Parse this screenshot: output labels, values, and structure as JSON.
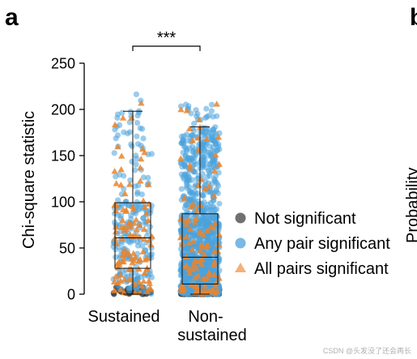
{
  "panel": {
    "label": "a",
    "next_panel_label": "b",
    "next_panel_clipped_text": "Probability"
  },
  "chart_data": {
    "type": "scatter",
    "subtype": "jittered strip plot with box plots",
    "categories": [
      "Sustained",
      "Non-sustained"
    ],
    "xlabel": "",
    "ylabel": "Chi-square statistic",
    "ylim": [
      0,
      250
    ],
    "yticks": [
      0,
      50,
      100,
      150,
      200,
      250
    ],
    "grid": false,
    "legend_placement": "right",
    "legend": [
      {
        "name": "Not significant",
        "marker": "circle",
        "color": "#707070"
      },
      {
        "name": "Any pair significant",
        "marker": "circle",
        "color": "#79b9e4"
      },
      {
        "name": "All pairs significant",
        "marker": "triangle",
        "color": "#f4b07a"
      }
    ],
    "boxes": [
      {
        "category": "Sustained",
        "whisker_low": 0,
        "q1": 28,
        "median": 61,
        "q3": 99,
        "whisker_high": 198
      },
      {
        "category": "Non-sustained",
        "whisker_low": 0,
        "q1": 11,
        "median": 40,
        "q3": 87,
        "whisker_high": 181
      }
    ],
    "significance": {
      "between": [
        "Sustained",
        "Non-sustained"
      ],
      "label": "***"
    },
    "point_counts_estimate": {
      "Sustained": {
        "Not significant": 40,
        "Any pair significant": 230,
        "All pairs significant": 110
      },
      "Non-sustained": {
        "Not significant": 300,
        "Any pair significant": 1300,
        "All pairs significant": 110
      }
    },
    "max_values_estimate": {
      "Sustained": 242,
      "Non-sustained": 207
    }
  },
  "watermark": "CSDN @头发没了还会再长"
}
